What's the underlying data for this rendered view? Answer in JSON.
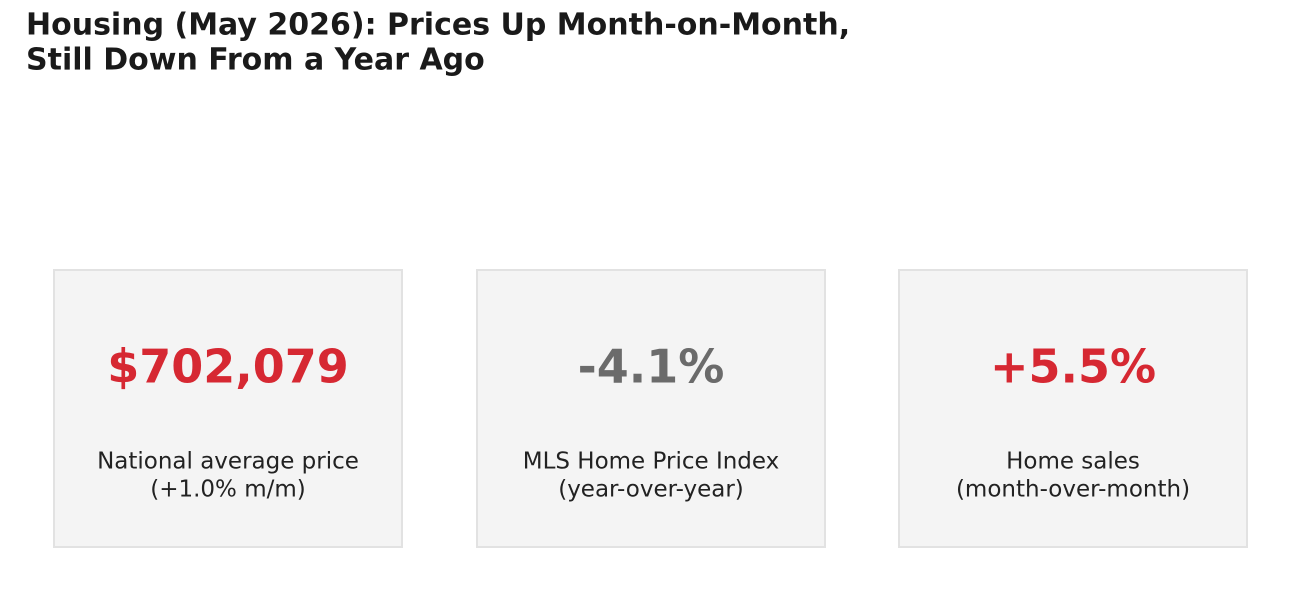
{
  "header": {
    "title": [
      "Housing (May 2026): Prices Up Month-on-Month,",
      "Still Down From a Year Ago"
    ]
  },
  "cards": [
    {
      "value": "$702,079",
      "color": "#d62832",
      "label": [
        "National average price",
        "(+1.0% m/m)"
      ]
    },
    {
      "value": "-4.1%",
      "color": "#6b6b6b",
      "label": [
        "MLS Home Price Index",
        "(year-over-year)"
      ]
    },
    {
      "value": "+5.5%",
      "color": "#d62832",
      "label": [
        "Home sales",
        "(month-over-month)"
      ]
    }
  ]
}
